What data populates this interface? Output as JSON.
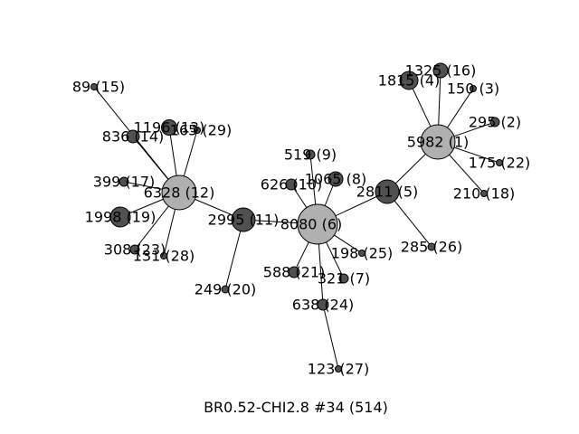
{
  "title": "BR0.52-CHI2.8 #34 (514)",
  "colors": {
    "dark": "#505050",
    "light": "#b0b0b0",
    "root_outline": "#b8b840",
    "edge": "#000000"
  },
  "nodes": [
    {
      "id": "n8080",
      "label": "8080 (6)",
      "shade": "light",
      "root": true
    },
    {
      "id": "n2995",
      "label": "2995 (11)",
      "shade": "dark"
    },
    {
      "id": "n6328",
      "label": "6328 (12)",
      "shade": "light"
    },
    {
      "id": "n89",
      "label": "89 (15)",
      "shade": "dark"
    },
    {
      "id": "n836",
      "label": "836 (14)",
      "shade": "dark"
    },
    {
      "id": "n1196",
      "label": "1196 (13)",
      "shade": "dark"
    },
    {
      "id": "n165",
      "label": "165 (29)",
      "shade": "dark"
    },
    {
      "id": "n399",
      "label": "399 (17)",
      "shade": "dark"
    },
    {
      "id": "n1998",
      "label": "1998 (19)",
      "shade": "dark"
    },
    {
      "id": "n308",
      "label": "308 (23)",
      "shade": "dark"
    },
    {
      "id": "n131",
      "label": "131 (28)",
      "shade": "dark"
    },
    {
      "id": "n249",
      "label": "249 (20)",
      "shade": "dark"
    },
    {
      "id": "n626",
      "label": "626 (10)",
      "shade": "dark"
    },
    {
      "id": "n519",
      "label": "519 (9)",
      "shade": "dark"
    },
    {
      "id": "n1065",
      "label": "1065 (8)",
      "shade": "dark"
    },
    {
      "id": "n2811",
      "label": "2811 (5)",
      "shade": "dark"
    },
    {
      "id": "n5982",
      "label": "5982 (1)",
      "shade": "light"
    },
    {
      "id": "n1325",
      "label": "1325 (16)",
      "shade": "dark"
    },
    {
      "id": "n1815",
      "label": "1815 (4)",
      "shade": "dark"
    },
    {
      "id": "n150",
      "label": "150 (3)",
      "shade": "dark"
    },
    {
      "id": "n295",
      "label": "295 (2)",
      "shade": "dark"
    },
    {
      "id": "n175",
      "label": "175 (22)",
      "shade": "dark"
    },
    {
      "id": "n210",
      "label": "210 (18)",
      "shade": "dark"
    },
    {
      "id": "n285",
      "label": "285 (26)",
      "shade": "dark"
    },
    {
      "id": "n198",
      "label": "198 (25)",
      "shade": "dark"
    },
    {
      "id": "n321",
      "label": "321 (7)",
      "shade": "dark"
    },
    {
      "id": "n588",
      "label": "588 (21)",
      "shade": "dark"
    },
    {
      "id": "n638",
      "label": "638 (24)",
      "shade": "dark"
    },
    {
      "id": "n123",
      "label": "123 (27)",
      "shade": "dark"
    }
  ],
  "edges": [
    [
      "n8080",
      "n2995"
    ],
    [
      "n2995",
      "n6328"
    ],
    [
      "n2995",
      "n249"
    ],
    [
      "n6328",
      "n89"
    ],
    [
      "n6328",
      "n836"
    ],
    [
      "n6328",
      "n1196"
    ],
    [
      "n6328",
      "n165"
    ],
    [
      "n6328",
      "n399"
    ],
    [
      "n6328",
      "n1998"
    ],
    [
      "n6328",
      "n308"
    ],
    [
      "n6328",
      "n131"
    ],
    [
      "n8080",
      "n626"
    ],
    [
      "n8080",
      "n519"
    ],
    [
      "n8080",
      "n1065"
    ],
    [
      "n8080",
      "n2811"
    ],
    [
      "n2811",
      "n5982"
    ],
    [
      "n2811",
      "n285"
    ],
    [
      "n5982",
      "n1325"
    ],
    [
      "n5982",
      "n1815"
    ],
    [
      "n5982",
      "n150"
    ],
    [
      "n5982",
      "n295"
    ],
    [
      "n5982",
      "n175"
    ],
    [
      "n5982",
      "n210"
    ],
    [
      "n8080",
      "n198"
    ],
    [
      "n8080",
      "n321"
    ],
    [
      "n8080",
      "n588"
    ],
    [
      "n8080",
      "n638"
    ],
    [
      "n638",
      "n123"
    ]
  ]
}
